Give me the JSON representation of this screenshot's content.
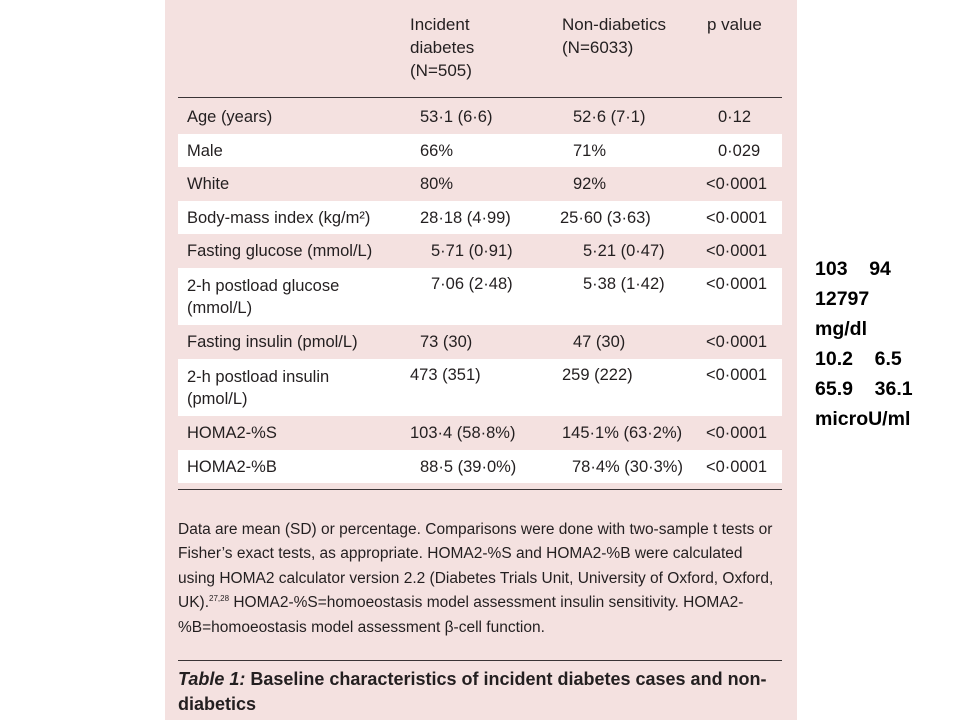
{
  "table": {
    "headers": {
      "col1": "Incident\ndiabetes\n(N=505)",
      "col2": "Non-diabetics\n(N=6033)",
      "col3": "p value"
    },
    "rows": [
      {
        "label": "Age (years)",
        "v1": "53·1 (6·6)",
        "v2": "52·6 (7·1)",
        "p": "0·12"
      },
      {
        "label": "Male",
        "v1": "66%",
        "v2": "71%",
        "p": "0·029"
      },
      {
        "label": "White",
        "v1": "80%",
        "v2": "92%",
        "p": "<0·0001"
      },
      {
        "label": "Body-mass index (kg/m²)",
        "v1": "28·18 (4·99)",
        "v2": "25·60 (3·63)",
        "p": "<0·0001"
      },
      {
        "label": "Fasting glucose (mmol/L)",
        "v1": "5·71 (0·91)",
        "v2": "5·21 (0·47)",
        "p": "<0·0001"
      },
      {
        "label": "2-h postload glucose\n(mmol/L)",
        "v1": "7·06 (2·48)",
        "v2": "5·38 (1·42)",
        "p": "<0·0001"
      },
      {
        "label": "Fasting insulin (pmol/L)",
        "v1": "73 (30)",
        "v2": "47 (30)",
        "p": "<0·0001"
      },
      {
        "label": "2-h postload insulin\n(pmol/L)",
        "v1": "473 (351)",
        "v2": "259 (222)",
        "p": "<0·0001"
      },
      {
        "label": "HOMA2-%S",
        "v1": "103·4 (58·8%)",
        "v2": "145·1% (63·2%)",
        "p": "<0·0001"
      },
      {
        "label": "HOMA2-%B",
        "v1": "88·5 (39·0%)",
        "v2": "78·4% (30·3%)",
        "p": "<0·0001"
      }
    ]
  },
  "footnote": {
    "text": "Data are mean (SD) or percentage. Comparisons were done with two-sample t tests or Fisher’s exact tests, as appropriate. HOMA2-%S and HOMA2-%B were calculated using HOMA2 calculator version 2.2 (Diabetes Trials Unit, University of Oxford, Oxford, UK).",
    "ref": "27,28",
    "text2": " HOMA2-%S=homoeostasis model assessment insulin sensitivity. HOMA2-%B=homoeostasis model assessment β-cell function."
  },
  "caption": {
    "label": "Table 1:",
    "text": " Baseline characteristics of incident diabetes cases and non-diabetics"
  },
  "annotations": [
    "103    94",
    "12797",
    "mg/dl",
    "10.2    6.5",
    "65.9    36.1",
    "microU/ml"
  ]
}
